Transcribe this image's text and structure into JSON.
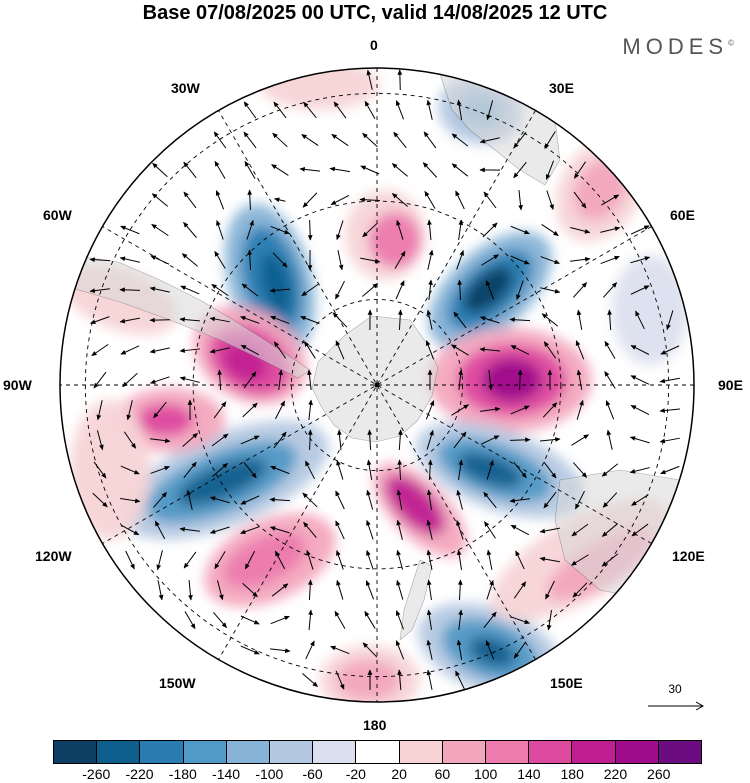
{
  "title": "Base 07/08/2025 00 UTC, valid 14/08/2025 12 UTC",
  "brand": "MODES",
  "brand_mark": "©",
  "longitude_labels": {
    "top": "0",
    "bottom": "180",
    "left": "90W",
    "right": "90E",
    "w30": "30W",
    "e30": "30E",
    "w60": "60W",
    "e60": "60E",
    "w120": "120W",
    "e120": "120E",
    "w150": "150W",
    "e150": "150E"
  },
  "reference_vector": {
    "value": "30"
  },
  "colorbar": {
    "colors": [
      "#0d3e63",
      "#0f5f8e",
      "#2a7db2",
      "#5199c6",
      "#86b3d6",
      "#b4c8e2",
      "#dcdfee",
      "#ffffff",
      "#f7d4d6",
      "#f3a7be",
      "#ec7bae",
      "#de4aa0",
      "#c01f92",
      "#9e0b8b",
      "#6b0c80"
    ],
    "ticks": [
      "-260",
      "-220",
      "-180",
      "-140",
      "-100",
      "-60",
      "-20",
      "20",
      "60",
      "100",
      "140",
      "180",
      "220",
      "260"
    ]
  },
  "map_colors": {
    "land": "#d9d9d9",
    "ocean": "#ffffff",
    "grid": "#000000"
  }
}
